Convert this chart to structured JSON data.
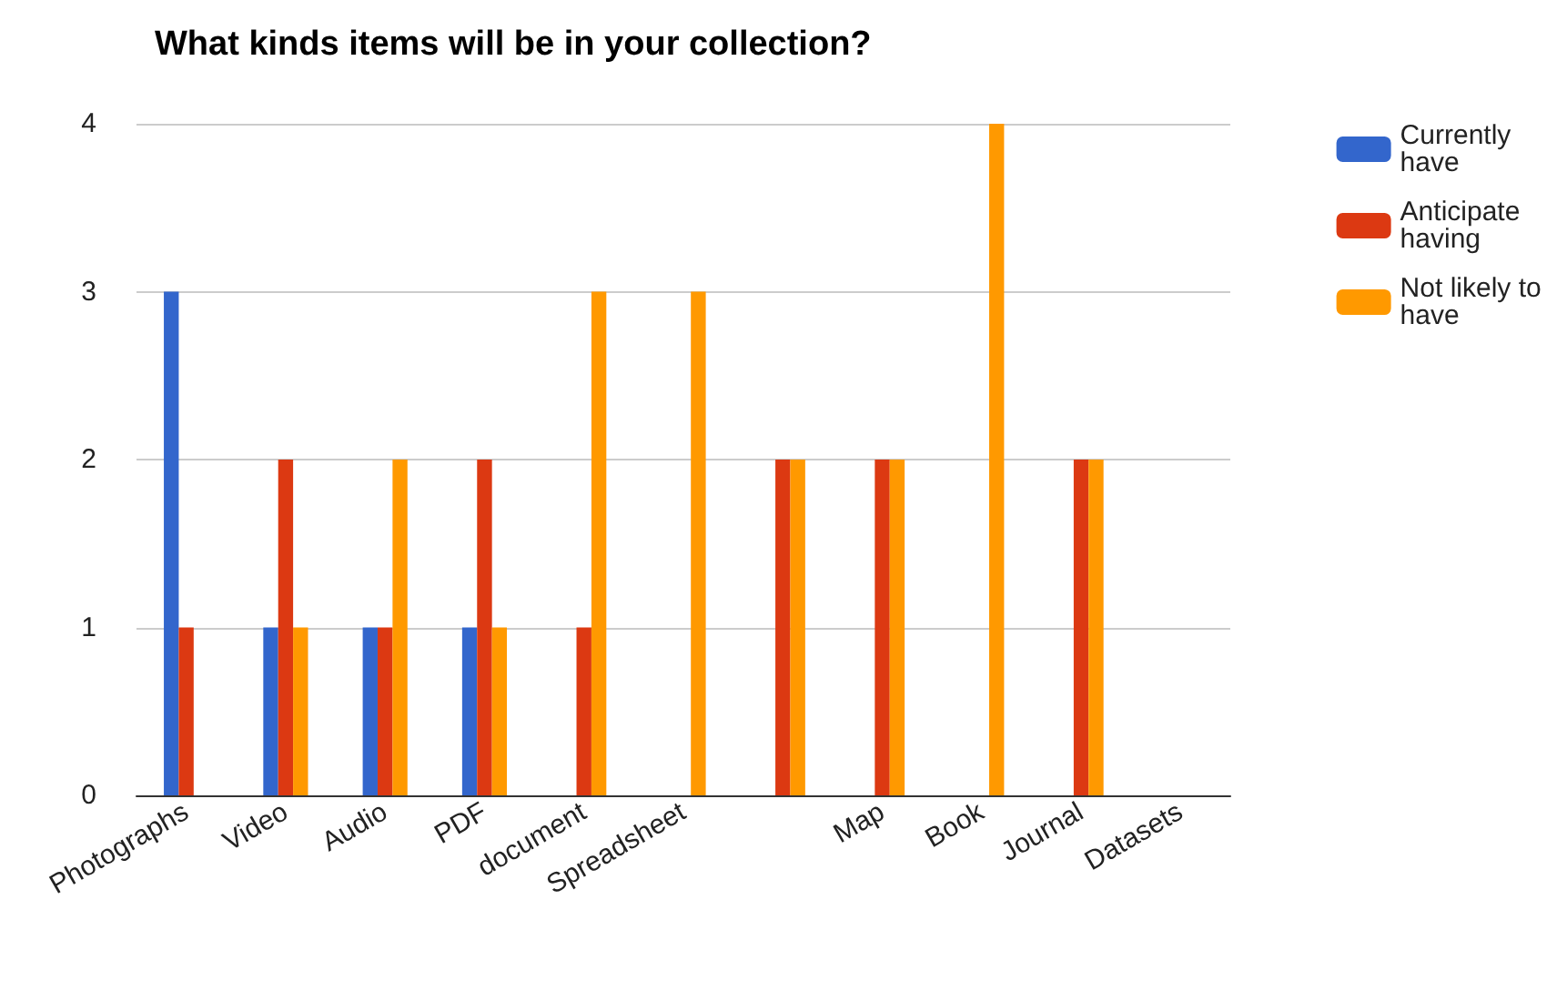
{
  "chart_data": {
    "type": "bar",
    "title": "What kinds items will be in your collection?",
    "categories": [
      "Photographs",
      "Video",
      "Audio",
      "PDF",
      "document",
      "Spreadsheet",
      null,
      "Map",
      "Book",
      "Journal",
      "Datasets"
    ],
    "series": [
      {
        "name": "Currently have",
        "color": "#3366cc",
        "values": [
          3,
          1,
          1,
          1,
          0,
          0,
          0,
          0,
          0,
          0,
          0
        ]
      },
      {
        "name": "Anticipate having",
        "color": "#dc3912",
        "values": [
          1,
          2,
          1,
          2,
          1,
          0,
          2,
          2,
          0,
          2,
          0
        ]
      },
      {
        "name": "Not likely to have",
        "color": "#ff9900",
        "values": [
          0,
          1,
          2,
          1,
          3,
          3,
          2,
          2,
          4,
          2,
          0
        ]
      }
    ],
    "ylim": [
      0,
      4
    ],
    "yticks": [
      0,
      1,
      2,
      3,
      4
    ],
    "grid": "y",
    "legend": "top right"
  }
}
